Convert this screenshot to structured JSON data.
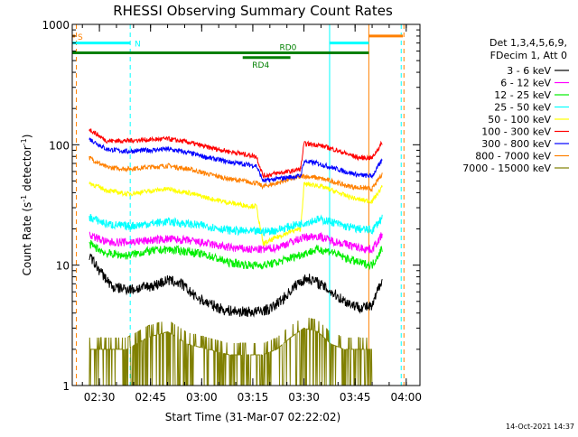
{
  "chart_data": {
    "type": "line",
    "title": "RHESSI Observing Summary Count Rates",
    "xlabel": "Start Time (31-Mar-07 02:22:02)",
    "ylabel": "Count Rate (s-1 detector-1)",
    "ylabel_parts": [
      "Count Rate (s",
      "-1",
      " detector",
      "-1",
      ")"
    ],
    "x_unit": "minutes after 02:22:02",
    "xlim": [
      0,
      102
    ],
    "ylim": [
      1,
      1000
    ],
    "y_scale": "log",
    "x_ticks": [
      {
        "label": "02:30",
        "x": 7.97
      },
      {
        "label": "02:45",
        "x": 22.97
      },
      {
        "label": "03:00",
        "x": 37.97
      },
      {
        "label": "03:15",
        "x": 52.97
      },
      {
        "label": "03:30",
        "x": 67.97
      },
      {
        "label": "03:45",
        "x": 82.97
      },
      {
        "label": "04:00",
        "x": 97.97
      }
    ],
    "y_ticks": [
      {
        "label": "1",
        "y": 1
      },
      {
        "label": "10",
        "y": 10
      },
      {
        "label": "100",
        "y": 100
      },
      {
        "label": "1000",
        "y": 1000
      }
    ],
    "legend_header": [
      "Det 1,3,4,5,6,9,",
      "FDecim 1, Att 0"
    ],
    "legend_position": "right",
    "series": [
      {
        "name": "3 - 6 keV",
        "color": "#000000",
        "x": [
          5,
          8,
          12,
          18,
          24,
          28,
          32,
          36,
          40,
          45,
          50,
          54,
          58,
          62,
          66,
          69,
          72,
          76,
          80,
          84,
          88,
          91
        ],
        "y": [
          12,
          9,
          6.5,
          6.3,
          6.8,
          7.5,
          7.0,
          5.5,
          4.8,
          4.2,
          4.1,
          4.1,
          4.3,
          5.3,
          7.0,
          7.8,
          7.2,
          6.0,
          5.0,
          4.5,
          4.5,
          8
        ]
      },
      {
        "name": "6 - 12 keV",
        "color": "#ff00ff",
        "x": [
          5,
          10,
          16,
          22,
          28,
          34,
          40,
          46,
          52,
          56,
          60,
          64,
          68,
          72,
          76,
          80,
          84,
          88,
          91
        ],
        "y": [
          18,
          15.5,
          15.5,
          16,
          16.5,
          16,
          15,
          14,
          13.5,
          13.5,
          14,
          15.5,
          17,
          17.5,
          16,
          15,
          14,
          13.5,
          18
        ]
      },
      {
        "name": "12 - 25 keV",
        "color": "#00ee00",
        "x": [
          5,
          10,
          16,
          22,
          28,
          34,
          40,
          46,
          52,
          56,
          60,
          64,
          68,
          72,
          76,
          80,
          84,
          88,
          91
        ],
        "y": [
          15,
          12.5,
          12,
          13,
          13.5,
          13,
          12,
          10.5,
          10,
          10,
          10.5,
          11.5,
          12.5,
          13.5,
          13,
          11.5,
          10.5,
          10,
          14
        ]
      },
      {
        "name": "25 - 50 keV",
        "color": "#00ffff",
        "x": [
          5,
          10,
          16,
          22,
          28,
          34,
          40,
          46,
          52,
          56,
          60,
          64,
          68,
          72,
          76,
          80,
          84,
          88,
          91
        ],
        "y": [
          25,
          22,
          21,
          22,
          23,
          22,
          21,
          19.5,
          19,
          19,
          19.5,
          21,
          22.5,
          24,
          23,
          21,
          20,
          19.5,
          25
        ]
      },
      {
        "name": "50 - 100 keV",
        "color": "#ffff00",
        "x": [
          5,
          10,
          16,
          22,
          28,
          34,
          40,
          46,
          52,
          54,
          56,
          60,
          64,
          67,
          68,
          72,
          76,
          80,
          84,
          88,
          91
        ],
        "y": [
          48,
          42,
          39,
          41,
          43,
          40,
          36,
          33,
          31,
          31,
          15,
          17,
          19,
          20,
          47,
          46,
          42,
          38,
          35,
          34,
          45
        ]
      },
      {
        "name": "100 - 300 keV",
        "color": "#ff0000",
        "x": [
          5,
          10,
          16,
          22,
          28,
          34,
          40,
          46,
          52,
          54,
          56,
          60,
          64,
          67,
          68,
          72,
          76,
          80,
          84,
          88,
          91
        ],
        "y": [
          135,
          108,
          108,
          110,
          112,
          105,
          95,
          88,
          82,
          80,
          55,
          58,
          60,
          63,
          102,
          100,
          93,
          85,
          78,
          78,
          105
        ]
      },
      {
        "name": "300 - 800 keV",
        "color": "#0000ff",
        "x": [
          5,
          10,
          16,
          22,
          28,
          34,
          40,
          46,
          52,
          54,
          56,
          60,
          64,
          67,
          68,
          72,
          76,
          80,
          84,
          88,
          91
        ],
        "y": [
          112,
          92,
          88,
          90,
          92,
          86,
          78,
          72,
          68,
          67,
          50,
          52,
          54,
          55,
          73,
          70,
          65,
          60,
          56,
          55,
          75
        ]
      },
      {
        "name": "800 - 7000 keV",
        "color": "#ff8000",
        "x": [
          5,
          10,
          16,
          22,
          28,
          34,
          40,
          46,
          52,
          54,
          56,
          60,
          64,
          67,
          68,
          72,
          76,
          80,
          84,
          88,
          91
        ],
        "y": [
          78,
          65,
          63,
          65,
          67,
          63,
          57,
          52,
          49,
          48,
          45,
          48,
          52,
          54,
          55,
          53,
          50,
          46,
          44,
          43,
          58
        ]
      },
      {
        "name": "7000 - 15000 keV",
        "color": "#808000",
        "x": [
          5,
          10,
          16,
          22,
          28,
          34,
          40,
          46,
          52,
          56,
          60,
          64,
          68,
          72,
          76,
          80,
          84,
          88
        ],
        "y": [
          2,
          2,
          2,
          2.5,
          2.8,
          2.2,
          2,
          1.8,
          1.8,
          1.8,
          2,
          2.5,
          3,
          2.8,
          2.2,
          2,
          2,
          2
        ]
      }
    ],
    "state_bars": [
      {
        "label": "N",
        "color": "#00ffff",
        "y": 700,
        "segments": [
          [
            0,
            17
          ],
          [
            75.5,
            87
          ]
        ],
        "label_x": 17.5
      },
      {
        "label": "RD0",
        "color": "#008000",
        "y": 580,
        "segments": [
          [
            0,
            87
          ]
        ],
        "label_x": 60
      },
      {
        "label": "RD4",
        "color": "#008000",
        "y": 530,
        "segments": [
          [
            50,
            64
          ]
        ],
        "label_x": 52
      },
      {
        "label": "S",
        "color": "#ff8000",
        "y": 800,
        "segments": [
          [
            0,
            0.8
          ],
          [
            87,
            97
          ]
        ],
        "label_x": 0.8
      }
    ],
    "vertical_markers": [
      {
        "x": 0,
        "color": "#00ffff",
        "style": "solid"
      },
      {
        "x": 1.2,
        "color": "#ff8000",
        "style": "dashed"
      },
      {
        "x": 17,
        "color": "#00ffff",
        "style": "dashed"
      },
      {
        "x": 75.5,
        "color": "#00ffff",
        "style": "solid"
      },
      {
        "x": 87,
        "color": "#ff8000",
        "style": "solid"
      },
      {
        "x": 96.5,
        "color": "#00ffff",
        "style": "dashed"
      },
      {
        "x": 97.3,
        "color": "#ff8000",
        "style": "dashed"
      }
    ]
  },
  "footer_timestamp": "14-Oct-2021 14:37"
}
